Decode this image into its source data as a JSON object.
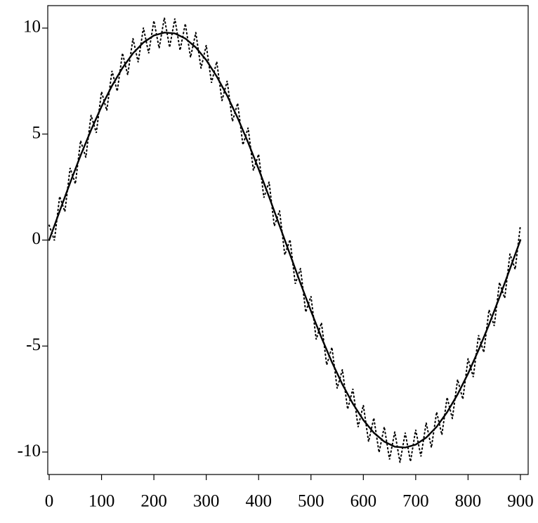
{
  "chart_data": {
    "type": "line",
    "xlim": [
      -2.7,
      914.8
    ],
    "ylim": [
      -11.06,
      11.06
    ],
    "xticks": [
      0,
      100,
      200,
      300,
      400,
      500,
      600,
      700,
      800,
      900
    ],
    "yticks": [
      -10,
      -5,
      0,
      5,
      10
    ],
    "series": [
      {
        "color": "#000000",
        "style": "solid",
        "x": [
          0,
          20,
          40,
          60,
          80,
          100,
          120,
          140,
          160,
          180,
          200,
          220,
          240,
          260,
          280,
          300,
          320,
          340,
          360,
          380,
          400,
          420,
          440,
          460,
          480,
          500,
          520,
          540,
          560,
          580,
          600,
          620,
          640,
          660,
          680,
          700,
          720,
          740,
          760,
          780,
          800,
          820,
          840,
          860,
          880,
          900
        ],
        "values": [
          0,
          1.36,
          2.7,
          3.99,
          5.19,
          6.3,
          7.28,
          8.12,
          8.81,
          9.32,
          9.65,
          9.79,
          9.75,
          9.51,
          9.09,
          8.49,
          7.72,
          6.81,
          5.76,
          4.6,
          3.35,
          2.04,
          0.68,
          -0.68,
          -2.04,
          -3.35,
          -4.6,
          -5.76,
          -6.81,
          -7.72,
          -8.49,
          -9.09,
          -9.51,
          -9.75,
          -9.79,
          -9.65,
          -9.32,
          -8.81,
          -8.12,
          -7.28,
          -6.3,
          -5.19,
          -3.99,
          -2.7,
          -1.36,
          0
        ]
      },
      {
        "color": "#000000",
        "style": "dotted",
        "x": [
          0,
          10,
          20,
          30,
          40,
          50,
          60,
          70,
          80,
          90,
          100,
          110,
          120,
          130,
          140,
          150,
          160,
          170,
          180,
          190,
          200,
          210,
          220,
          230,
          240,
          250,
          260,
          270,
          280,
          290,
          300,
          310,
          320,
          330,
          340,
          350,
          360,
          370,
          380,
          390,
          400,
          410,
          420,
          430,
          440,
          450,
          460,
          470,
          480,
          490,
          500,
          510,
          520,
          530,
          540,
          550,
          560,
          570,
          580,
          590,
          600,
          610,
          620,
          630,
          640,
          650,
          660,
          670,
          680,
          690,
          700,
          710,
          720,
          730,
          740,
          750,
          760,
          770,
          780,
          790,
          800,
          810,
          820,
          830,
          840,
          850,
          860,
          870,
          880,
          890,
          900
        ],
        "values": [
          0.7,
          -0.02,
          2.06,
          1.34,
          3.4,
          2.65,
          4.69,
          3.9,
          5.89,
          5.06,
          7.0,
          6.11,
          7.98,
          7.02,
          8.82,
          7.79,
          9.51,
          8.39,
          10.02,
          8.81,
          10.35,
          9.05,
          10.49,
          9.09,
          10.45,
          8.95,
          10.21,
          8.62,
          9.79,
          8.11,
          9.19,
          7.42,
          8.42,
          6.58,
          7.51,
          5.6,
          6.46,
          4.49,
          5.3,
          3.29,
          4.05,
          2.0,
          2.74,
          0.66,
          1.38,
          -0.7,
          0.02,
          -2.06,
          -1.34,
          -3.4,
          -2.65,
          -4.69,
          -3.9,
          -5.89,
          -5.06,
          -7.0,
          -6.11,
          -7.98,
          -7.02,
          -8.82,
          -7.79,
          -9.51,
          -8.39,
          -10.02,
          -8.81,
          -10.35,
          -9.05,
          -10.49,
          -9.09,
          -10.45,
          -8.95,
          -10.21,
          -8.62,
          -9.79,
          -8.11,
          -9.19,
          -7.42,
          -8.42,
          -6.58,
          -7.51,
          -5.6,
          -6.46,
          -4.49,
          -5.3,
          -3.29,
          -4.05,
          -2.0,
          -2.74,
          -0.66,
          -1.38,
          0.7
        ]
      }
    ]
  }
}
